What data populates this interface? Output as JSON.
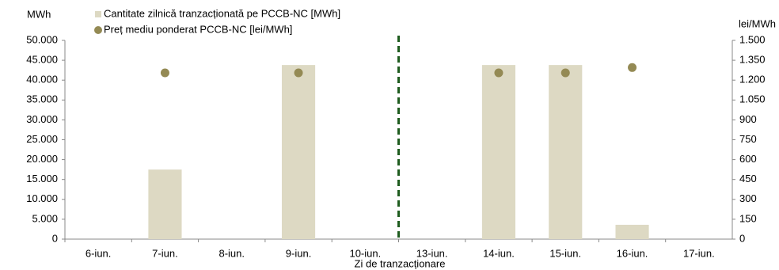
{
  "chart_data": {
    "type": "combo",
    "y_label": "MWh",
    "y2_label": "lei/MWh",
    "x_label": "Zi de tranzacționare",
    "categories": [
      "6-iun.",
      "7-iun.",
      "8-iun.",
      "9-iun.",
      "10-iun.",
      "13-iun.",
      "14-iun.",
      "15-iun.",
      "16-iun.",
      "17-iun."
    ],
    "series": [
      {
        "name": "Cantitate zilnică tranzacționată pe PCCB-NC [MWh]",
        "type": "bar",
        "axis": "y",
        "color": "#ddd9c3",
        "values": [
          null,
          17500,
          null,
          43800,
          null,
          null,
          43800,
          43800,
          3600,
          null
        ]
      },
      {
        "name": "Preț mediu ponderat PCCB-NC [lei/MWh]",
        "type": "scatter",
        "axis": "y2",
        "color": "#948a54",
        "values": [
          null,
          1255,
          null,
          1255,
          null,
          null,
          1255,
          1255,
          1295,
          null
        ]
      }
    ],
    "ylim": [
      0,
      50000
    ],
    "yticks": [
      0,
      {
        "value": 5000,
        "label": "5.000"
      },
      {
        "value": 10000,
        "label": "10.000"
      },
      {
        "value": 15000,
        "label": "15.000"
      },
      {
        "value": 20000,
        "label": "20.000"
      },
      {
        "value": 25000,
        "label": "25.000"
      },
      {
        "value": 30000,
        "label": "30.000"
      },
      {
        "value": 35000,
        "label": "35.000"
      },
      {
        "value": 40000,
        "label": "40.000"
      },
      {
        "value": 45000,
        "label": "45.000"
      },
      {
        "value": 50000,
        "label": "50.000"
      }
    ],
    "y2lim": [
      0,
      1500
    ],
    "y2ticks": [
      0,
      150,
      300,
      450,
      600,
      750,
      900,
      {
        "value": 1050,
        "label": "1.050"
      },
      {
        "value": 1200,
        "label": "1.200"
      },
      {
        "value": 1350,
        "label": "1.350"
      },
      {
        "value": 1500,
        "label": "1.500"
      }
    ],
    "divider_color": "#1f5c1f"
  }
}
